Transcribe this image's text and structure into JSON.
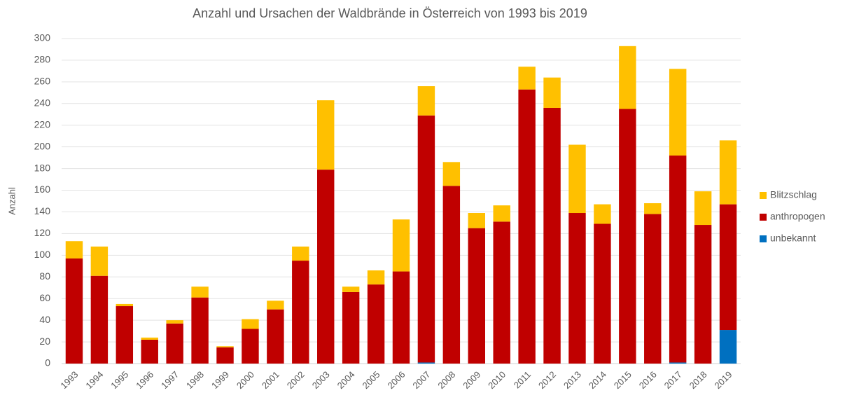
{
  "chart_data": {
    "type": "stacked_bar",
    "title": "Anzahl und Ursachen der Waldbrände in Österreich von 1993 bis 2019",
    "y_label": "Anzahl",
    "categories": [
      "1993",
      "1994",
      "1995",
      "1996",
      "1997",
      "1998",
      "1999",
      "2000",
      "2001",
      "2002",
      "2003",
      "2004",
      "2005",
      "2006",
      "2007",
      "2008",
      "2009",
      "2010",
      "2011",
      "2012",
      "2013",
      "2014",
      "2015",
      "2016",
      "2017",
      "2018",
      "2019"
    ],
    "series": [
      {
        "name": "unbekannt",
        "color": "#0070c0",
        "values": [
          0,
          0,
          0,
          0,
          0,
          0,
          0,
          0,
          0,
          0,
          0,
          0,
          0,
          0,
          1,
          0,
          0,
          0,
          0,
          0,
          0,
          0,
          0,
          0,
          1,
          0,
          31
        ]
      },
      {
        "name": "anthropogen",
        "color": "#c00000",
        "values": [
          97,
          81,
          53,
          22,
          37,
          61,
          15,
          32,
          50,
          95,
          179,
          66,
          73,
          85,
          228,
          164,
          125,
          131,
          253,
          236,
          139,
          129,
          235,
          138,
          191,
          128,
          116
        ]
      },
      {
        "name": "Blitzschlag",
        "color": "#ffc000",
        "values": [
          16,
          27,
          2,
          2,
          3,
          10,
          1,
          9,
          8,
          13,
          64,
          5,
          13,
          48,
          27,
          22,
          14,
          15,
          21,
          28,
          63,
          18,
          58,
          10,
          80,
          31,
          59
        ]
      }
    ],
    "ylim": [
      0,
      300
    ],
    "yticks": [
      0,
      20,
      40,
      60,
      80,
      100,
      120,
      140,
      160,
      180,
      200,
      220,
      240,
      260,
      280,
      300
    ],
    "grid": true,
    "legend": "right"
  }
}
